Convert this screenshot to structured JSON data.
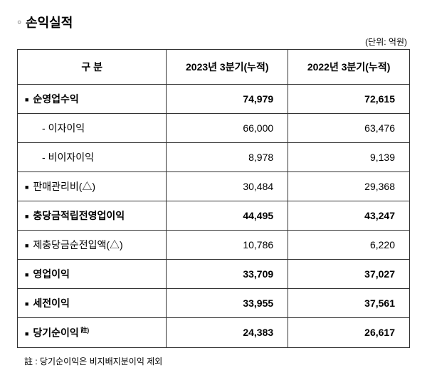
{
  "title": "손익실적",
  "unit": "(단위: 억원)",
  "columns": {
    "category": "구        분",
    "period1": "2023년 3분기(누적)",
    "period2": "2022년 3분기(누적)"
  },
  "rows": [
    {
      "label": "순영업수익",
      "p1": "74,979",
      "p2": "72,615",
      "bold": true,
      "bullet": true,
      "indent": false,
      "sup": ""
    },
    {
      "label": "이자이익",
      "p1": "66,000",
      "p2": "63,476",
      "bold": false,
      "bullet": false,
      "indent": true,
      "prefix": "- ",
      "sup": ""
    },
    {
      "label": "비이자이익",
      "p1": "8,978",
      "p2": "9,139",
      "bold": false,
      "bullet": false,
      "indent": true,
      "prefix": "- ",
      "sup": ""
    },
    {
      "label": "판매관리비(△)",
      "p1": "30,484",
      "p2": "29,368",
      "bold": false,
      "bullet": true,
      "indent": false,
      "sup": ""
    },
    {
      "label": "충당금적립전영업이익",
      "p1": "44,495",
      "p2": "43,247",
      "bold": true,
      "bullet": true,
      "indent": false,
      "sup": ""
    },
    {
      "label": "제충당금순전입액(△)",
      "p1": "10,786",
      "p2": "6,220",
      "bold": false,
      "bullet": true,
      "indent": false,
      "sup": ""
    },
    {
      "label": "영업이익",
      "p1": "33,709",
      "p2": "37,027",
      "bold": true,
      "bullet": true,
      "indent": false,
      "sup": ""
    },
    {
      "label": "세전이익",
      "p1": "33,955",
      "p2": "37,561",
      "bold": true,
      "bullet": true,
      "indent": false,
      "sup": ""
    },
    {
      "label": "당기순이익",
      "p1": "24,383",
      "p2": "26,617",
      "bold": true,
      "bullet": true,
      "indent": false,
      "sup": " 註)"
    }
  ],
  "footnote": "註 : 당기순이익은 비지배지분이익 제외"
}
